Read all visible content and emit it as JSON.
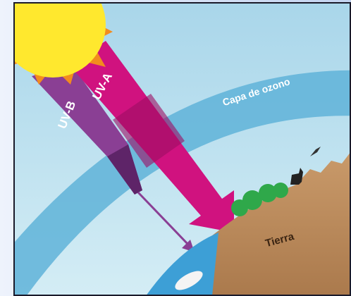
{
  "labels": {
    "uv_b": "UV-B",
    "uv_a": "UV-A",
    "ozone": "Capa de ozono",
    "earth": "Tierra"
  }
}
